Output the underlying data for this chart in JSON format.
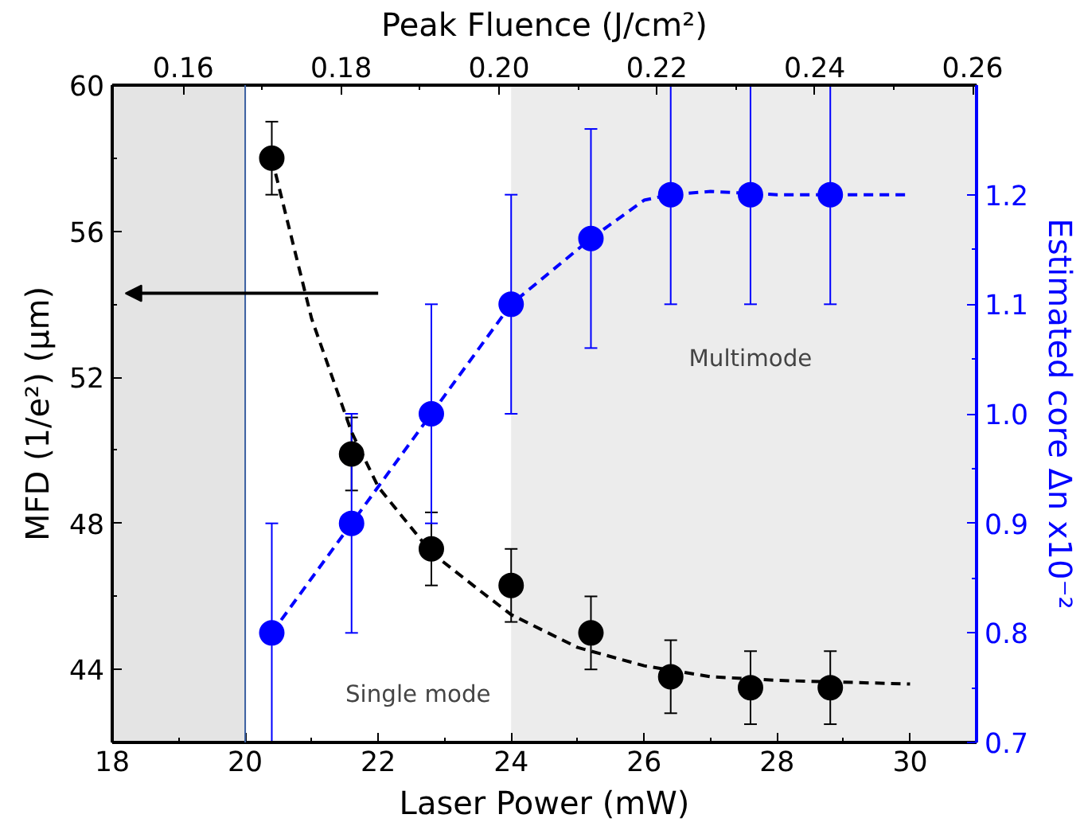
{
  "chart_data": {
    "type": "scatter",
    "xlabel": "Laser Power (mW)",
    "ylabel": "MFD (1/e²) (μm)",
    "y2label": "Estimated core Δn x10⁻²",
    "x2label": "Peak Fluence (J/cm²)",
    "xlim": [
      18,
      31
    ],
    "xticks": [
      18,
      20,
      22,
      24,
      26,
      28,
      30
    ],
    "ylim": [
      42,
      60
    ],
    "yticks": [
      44,
      48,
      52,
      56,
      60
    ],
    "y2lim": [
      0.7,
      1.3
    ],
    "y2ticks": [
      {
        "value": 0.7,
        "label": "0.7"
      },
      {
        "value": 0.8,
        "label": "0.8"
      },
      {
        "value": 0.9,
        "label": "0.9"
      },
      {
        "value": 1.0,
        "label": "1.0"
      },
      {
        "value": 1.1,
        "label": "1.1"
      },
      {
        "value": 1.2,
        "label": "1.2"
      }
    ],
    "x2lim": [
      0.151,
      0.2605
    ],
    "x2ticks": [
      {
        "value": 0.16,
        "label": "0.16"
      },
      {
        "value": 0.18,
        "label": "0.18"
      },
      {
        "value": 0.2,
        "label": "0.20"
      },
      {
        "value": 0.22,
        "label": "0.22"
      },
      {
        "value": 0.24,
        "label": "0.24"
      },
      {
        "value": 0.26,
        "label": "0.26"
      }
    ],
    "grid": false,
    "series": [
      {
        "marker": "circle",
        "color": "#000000",
        "x": [
          20.4,
          21.6,
          22.8,
          24.0,
          25.2,
          26.4,
          27.6,
          28.8
        ],
        "values": [
          58.0,
          49.9,
          47.3,
          46.3,
          45.0,
          43.8,
          43.5,
          43.5
        ],
        "errors": [
          1.0,
          1.0,
          1.0,
          1.0,
          1.0,
          1.0,
          1.0,
          1.0
        ]
      },
      {
        "marker": "circle",
        "color": "#0000ff",
        "axis": "y2",
        "x": [
          20.4,
          21.6,
          22.8,
          24.0,
          25.2,
          26.4,
          27.6,
          28.8
        ],
        "values": [
          0.8,
          0.9,
          1.0,
          1.1,
          1.16,
          1.2,
          1.2,
          1.2
        ],
        "errors": [
          0.1,
          0.1,
          0.1,
          0.1,
          0.1,
          0.1,
          0.1,
          0.1
        ]
      },
      {
        "type": "line",
        "marker": "none",
        "line_style": "dashed",
        "color": "#000000",
        "x": [
          20.4,
          21.0,
          21.6,
          22.0,
          22.8,
          23.5,
          24.0,
          25.0,
          26.0,
          27.0,
          28.0,
          29.0,
          30.0
        ],
        "values": [
          58.0,
          53.6,
          50.5,
          49.0,
          47.2,
          46.2,
          45.5,
          44.6,
          44.1,
          43.8,
          43.7,
          43.65,
          43.6
        ]
      },
      {
        "type": "line",
        "marker": "none",
        "line_style": "dashed",
        "color": "#0000ff",
        "axis": "y2",
        "x": [
          20.4,
          21.6,
          22.8,
          24.0,
          25.2,
          26.0,
          26.4,
          27.0,
          28.0,
          30.0
        ],
        "values": [
          0.8,
          0.9,
          1.0,
          1.1,
          1.16,
          1.195,
          1.2,
          1.203,
          1.2,
          1.2
        ]
      }
    ],
    "bands": [
      {
        "axis": "x",
        "from": 18,
        "to": 20,
        "color": "#e4e4e4"
      },
      {
        "axis": "x",
        "from": 24,
        "to": 31,
        "color": "#ececec"
      }
    ],
    "ref_lines": [
      {
        "axis": "x",
        "value": 20,
        "color": "#3a5fa0"
      }
    ],
    "annotations": [
      "Multimode",
      "Single mode"
    ]
  }
}
